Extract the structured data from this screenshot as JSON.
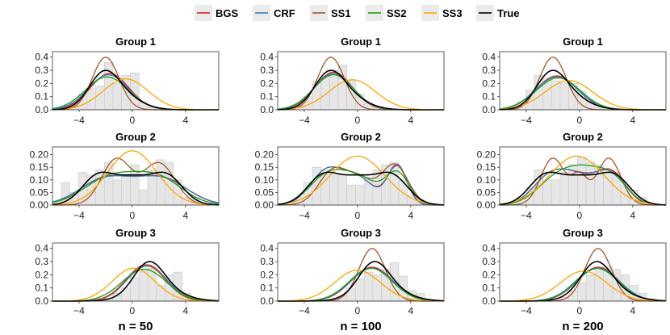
{
  "legend": {
    "items": [
      {
        "label": "BGS",
        "color": "#E41A1C"
      },
      {
        "label": "CRF",
        "color": "#377EB8"
      },
      {
        "label": "SS1",
        "color": "#A65628"
      },
      {
        "label": "SS2",
        "color": "#1A9E1A"
      },
      {
        "label": "SS3",
        "color": "#FFA500"
      },
      {
        "label": "True",
        "color": "#000000"
      }
    ]
  },
  "column_titles": [
    "n = 50",
    "n = 100",
    "n = 200"
  ],
  "chart_data": {
    "type": "area",
    "xlim": [
      -6,
      6.5
    ],
    "x_ticks": [
      -4,
      0,
      4
    ],
    "x_tick_labels": [
      "−4",
      "0",
      "4"
    ],
    "grid": false,
    "legend_position": "top",
    "histogram_bins": {
      "start": -6,
      "width": 0.65
    },
    "groups": [
      {
        "title": "Group 1",
        "ylim": [
          0,
          0.42
        ],
        "y_ticks": [
          0.0,
          0.1,
          0.2,
          0.3,
          0.4
        ],
        "y_tick_labels": [
          "0.0",
          "0.1",
          "0.2",
          "0.3",
          "0.4"
        ],
        "true_mix": [
          {
            "w": 0.6,
            "m": -2.2,
            "s": 1.1
          },
          {
            "w": 0.4,
            "m": -1.0,
            "s": 1.5
          }
        ]
      },
      {
        "title": "Group 2",
        "ylim": [
          0,
          0.22
        ],
        "y_ticks": [
          0.0,
          0.05,
          0.1,
          0.15,
          0.2
        ],
        "y_tick_labels": [
          "0.00",
          "0.05",
          "0.10",
          "0.15",
          "0.20"
        ],
        "true_mix": [
          {
            "w": 0.34,
            "m": -2.6,
            "s": 1.2
          },
          {
            "w": 0.32,
            "m": 0.0,
            "s": 1.3
          },
          {
            "w": 0.34,
            "m": 2.6,
            "s": 1.2
          }
        ]
      },
      {
        "title": "Group 3",
        "ylim": [
          0,
          0.42
        ],
        "y_ticks": [
          0.0,
          0.1,
          0.2,
          0.3,
          0.4
        ],
        "y_tick_labels": [
          "0.0",
          "0.1",
          "0.2",
          "0.3",
          "0.4"
        ],
        "true_mix": [
          {
            "w": 0.55,
            "m": 1.2,
            "s": 1.1
          },
          {
            "w": 0.45,
            "m": 1.8,
            "s": 1.7
          }
        ]
      }
    ],
    "panels": [
      {
        "row": 0,
        "col": 0,
        "hist": [
          0.0,
          0.02,
          0.05,
          0.12,
          0.16,
          0.18,
          0.36,
          0.2,
          0.26,
          0.28,
          0.06,
          0.02,
          0,
          0,
          0,
          0,
          0,
          0,
          0
        ],
        "series": {
          "BGS": [
            {
              "w": 1,
              "m": -1.7,
              "s": 1.45
            }
          ],
          "CRF": [
            {
              "w": 1,
              "m": -1.8,
              "s": 1.5
            }
          ],
          "SS1": [
            {
              "w": 1,
              "m": -2.0,
              "s": 1.0
            }
          ],
          "SS2": [
            {
              "w": 1,
              "m": -1.9,
              "s": 1.6
            }
          ],
          "SS3": [
            {
              "w": 1,
              "m": -0.5,
              "s": 1.7
            }
          ]
        }
      },
      {
        "row": 0,
        "col": 1,
        "hist": [
          0.0,
          0.01,
          0.03,
          0.1,
          0.22,
          0.25,
          0.3,
          0.34,
          0.22,
          0.12,
          0.05,
          0.02,
          0,
          0,
          0,
          0,
          0,
          0,
          0
        ],
        "series": {
          "BGS": [
            {
              "w": 1,
              "m": -1.8,
              "s": 1.4
            }
          ],
          "CRF": [
            {
              "w": 1,
              "m": -1.8,
              "s": 1.45
            }
          ],
          "SS1": [
            {
              "w": 1,
              "m": -2.0,
              "s": 1.0
            }
          ],
          "SS2": [
            {
              "w": 1,
              "m": -1.8,
              "s": 1.5
            }
          ],
          "SS3": [
            {
              "w": 1,
              "m": -0.4,
              "s": 1.75
            }
          ]
        }
      },
      {
        "row": 0,
        "col": 2,
        "hist": [
          0.0,
          0.02,
          0.06,
          0.15,
          0.26,
          0.24,
          0.22,
          0.2,
          0.2,
          0.14,
          0.06,
          0.02,
          0,
          0,
          0,
          0,
          0,
          0,
          0
        ],
        "series": {
          "BGS": [
            {
              "w": 1,
              "m": -1.7,
              "s": 1.55
            }
          ],
          "CRF": [
            {
              "w": 1,
              "m": -1.7,
              "s": 1.6
            }
          ],
          "SS1": [
            {
              "w": 1,
              "m": -2.0,
              "s": 1.0
            }
          ],
          "SS2": [
            {
              "w": 1,
              "m": -1.6,
              "s": 1.65
            }
          ],
          "SS3": [
            {
              "w": 1,
              "m": -0.8,
              "s": 1.8
            }
          ]
        }
      },
      {
        "row": 1,
        "col": 0,
        "hist": [
          0.0,
          0.09,
          0.05,
          0.13,
          0.12,
          0.14,
          0.17,
          0.1,
          0.12,
          0.16,
          0.06,
          0.14,
          0.18,
          0.17,
          0.1,
          0.03,
          0.03,
          0,
          0
        ],
        "series": {
          "BGS": [
            {
              "w": 0.5,
              "m": -2.0,
              "s": 1.9
            },
            {
              "w": 0.5,
              "m": 2.2,
              "s": 1.9
            }
          ],
          "CRF": [
            {
              "w": 0.5,
              "m": -2.0,
              "s": 1.95
            },
            {
              "w": 0.5,
              "m": 2.2,
              "s": 1.95
            }
          ],
          "SS1": [
            {
              "w": 0.5,
              "m": -1.2,
              "s": 1.1
            },
            {
              "w": 0.5,
              "m": 2.0,
              "s": 1.2
            }
          ],
          "SS2": [
            {
              "w": 0.55,
              "m": -1.6,
              "s": 2.0
            },
            {
              "w": 0.45,
              "m": 2.0,
              "s": 1.8
            }
          ],
          "SS3": [
            {
              "w": 1,
              "m": 0.0,
              "s": 1.85
            }
          ]
        }
      },
      {
        "row": 1,
        "col": 1,
        "hist": [
          0.0,
          0.01,
          0.03,
          0.09,
          0.15,
          0.14,
          0.12,
          0.12,
          0.08,
          0.08,
          0.1,
          0.14,
          0.16,
          0.17,
          0.1,
          0.04,
          0.02,
          0,
          0
        ],
        "series": {
          "BGS": [
            {
              "w": 0.38,
              "m": -2.4,
              "s": 1.2
            },
            {
              "w": 0.34,
              "m": 0.0,
              "s": 1.3
            },
            {
              "w": 0.28,
              "m": 3.0,
              "s": 0.75
            }
          ],
          "CRF": [
            {
              "w": 0.38,
              "m": -2.4,
              "s": 1.2
            },
            {
              "w": 0.34,
              "m": 0.0,
              "s": 1.3
            },
            {
              "w": 0.28,
              "m": 3.0,
              "s": 0.72
            }
          ],
          "SS1": [
            {
              "w": 0.38,
              "m": -1.8,
              "s": 1.1
            },
            {
              "w": 0.22,
              "m": 0.3,
              "s": 1.0
            },
            {
              "w": 0.4,
              "m": 2.8,
              "s": 1.0
            }
          ],
          "SS2": [
            {
              "w": 0.42,
              "m": -2.2,
              "s": 1.4
            },
            {
              "w": 0.3,
              "m": 0.3,
              "s": 1.3
            },
            {
              "w": 0.28,
              "m": 3.0,
              "s": 0.9
            }
          ],
          "SS3": [
            {
              "w": 1,
              "m": 0.0,
              "s": 2.05
            }
          ]
        }
      },
      {
        "row": 1,
        "col": 2,
        "hist": [
          0.0,
          0.01,
          0.03,
          0.07,
          0.14,
          0.1,
          0.1,
          0.13,
          0.16,
          0.19,
          0.17,
          0.16,
          0.13,
          0.13,
          0.08,
          0.06,
          0.03,
          0,
          0
        ],
        "series": {
          "BGS": [
            {
              "w": 0.36,
              "m": -2.2,
              "s": 1.3
            },
            {
              "w": 0.3,
              "m": 0.0,
              "s": 1.3
            },
            {
              "w": 0.34,
              "m": 2.4,
              "s": 1.1
            }
          ],
          "CRF": [
            {
              "w": 0.36,
              "m": -2.2,
              "s": 1.3
            },
            {
              "w": 0.3,
              "m": 0.0,
              "s": 1.3
            },
            {
              "w": 0.34,
              "m": 2.4,
              "s": 1.15
            }
          ],
          "SS1": [
            {
              "w": 0.42,
              "m": -2.0,
              "s": 0.9
            },
            {
              "w": 0.16,
              "m": 0.0,
              "s": 0.6
            },
            {
              "w": 0.42,
              "m": 2.2,
              "s": 0.9
            }
          ],
          "SS2": [
            {
              "w": 0.42,
              "m": -1.6,
              "s": 1.5
            },
            {
              "w": 0.26,
              "m": 0.4,
              "s": 1.2
            },
            {
              "w": 0.32,
              "m": 2.4,
              "s": 1.2
            }
          ],
          "SS3": [
            {
              "w": 1,
              "m": -0.2,
              "s": 2.05
            }
          ]
        }
      },
      {
        "row": 2,
        "col": 0,
        "hist": [
          0,
          0,
          0,
          0,
          0,
          0,
          0.02,
          0.06,
          0.1,
          0.18,
          0.24,
          0.25,
          0.12,
          0.2,
          0.22,
          0.06,
          0.02,
          0,
          0
        ],
        "series": {
          "BGS": [
            {
              "w": 1,
              "m": 1.1,
              "s": 1.45
            }
          ],
          "CRF": [
            {
              "w": 1,
              "m": 1.1,
              "s": 1.5
            }
          ],
          "SS1": [
            {
              "w": 1,
              "m": 1.0,
              "s": 1.45
            }
          ],
          "SS2": [
            {
              "w": 1,
              "m": 0.9,
              "s": 1.65
            }
          ],
          "SS3": [
            {
              "w": 1,
              "m": 0.1,
              "s": 1.6
            }
          ]
        }
      },
      {
        "row": 2,
        "col": 1,
        "hist": [
          0,
          0,
          0,
          0,
          0,
          0,
          0.01,
          0.04,
          0.1,
          0.17,
          0.22,
          0.2,
          0.24,
          0.29,
          0.19,
          0.08,
          0.06,
          0.01,
          0
        ],
        "series": {
          "BGS": [
            {
              "w": 1,
              "m": 1.1,
              "s": 1.55
            }
          ],
          "CRF": [
            {
              "w": 1,
              "m": 1.1,
              "s": 1.6
            }
          ],
          "SS1": [
            {
              "w": 1,
              "m": 1.1,
              "s": 1.0
            }
          ],
          "SS2": [
            {
              "w": 1,
              "m": 1.0,
              "s": 1.6
            }
          ],
          "SS3": [
            {
              "w": 1,
              "m": 0.0,
              "s": 1.7
            }
          ]
        }
      },
      {
        "row": 2,
        "col": 2,
        "hist": [
          0,
          0,
          0,
          0,
          0,
          0,
          0.01,
          0.03,
          0.08,
          0.14,
          0.2,
          0.24,
          0.26,
          0.24,
          0.2,
          0.12,
          0.06,
          0.02,
          0
        ],
        "series": {
          "BGS": [
            {
              "w": 1,
              "m": 1.4,
              "s": 1.55
            }
          ],
          "CRF": [
            {
              "w": 1,
              "m": 1.4,
              "s": 1.6
            }
          ],
          "SS1": [
            {
              "w": 1,
              "m": 1.4,
              "s": 1.0
            }
          ],
          "SS2": [
            {
              "w": 1,
              "m": 1.3,
              "s": 1.6
            }
          ],
          "SS3": [
            {
              "w": 1,
              "m": 0.3,
              "s": 1.75
            }
          ]
        }
      }
    ]
  }
}
